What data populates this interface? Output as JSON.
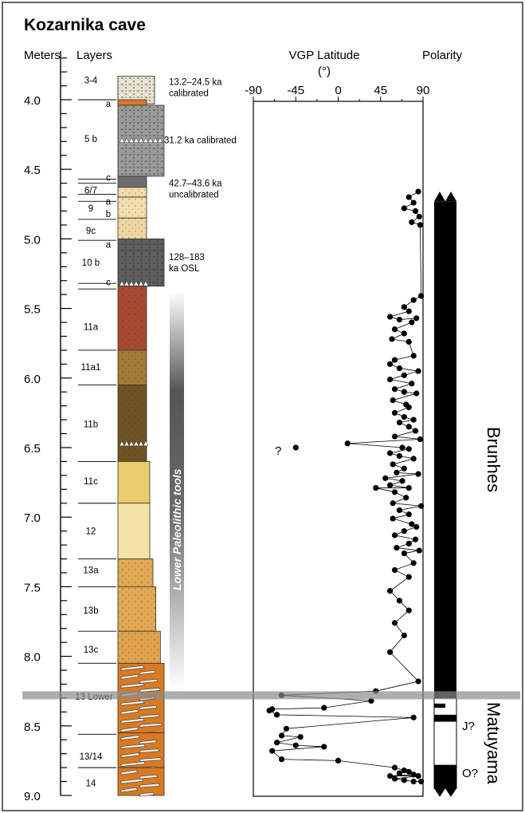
{
  "title": "Kozarnika cave",
  "headers": {
    "meters": "Meters",
    "layers": "Layers",
    "vgp_line1": "VGP Latitude",
    "vgp_line2": "(°)",
    "polarity": "Polarity"
  },
  "depth_ticks": [
    {
      "value": 4.0,
      "label": "4.0"
    },
    {
      "value": 4.5,
      "label": "4.5"
    },
    {
      "value": 5.0,
      "label": "5.0"
    },
    {
      "value": 5.5,
      "label": "5.5"
    },
    {
      "value": 6.0,
      "label": "6.0"
    },
    {
      "value": 6.5,
      "label": "6.5"
    },
    {
      "value": 7.0,
      "label": "7.0"
    },
    {
      "value": 7.5,
      "label": "7.5"
    },
    {
      "value": 8.0,
      "label": "8.0"
    },
    {
      "value": 8.5,
      "label": "8.5"
    },
    {
      "value": 9.0,
      "label": "9.0"
    }
  ],
  "vgp_ticks": [
    {
      "value": -90,
      "label": "-90"
    },
    {
      "value": -45,
      "label": "-45"
    },
    {
      "value": 0,
      "label": "0"
    },
    {
      "value": 45,
      "label": "45"
    },
    {
      "value": 90,
      "label": "90"
    }
  ],
  "layers": [
    {
      "label": "3-4",
      "sub": "a",
      "top": 3.83,
      "bottom": 4.03,
      "color": "#e8e0d0",
      "pattern": "rubble"
    },
    {
      "label": "",
      "sub": "",
      "top": 4.0,
      "bottom": 4.04,
      "color": "#d9752b",
      "pattern": "solid"
    },
    {
      "label": "5",
      "sub": "b",
      "top": 4.04,
      "bottom": 4.55,
      "color": "#9a9a96",
      "pattern": "rubble"
    },
    {
      "label": "",
      "sub": "c",
      "top": 4.55,
      "bottom": 4.63,
      "color": "#6e6e6e",
      "pattern": "solid"
    },
    {
      "label": "6/7",
      "sub": "",
      "top": 4.63,
      "bottom": 4.7,
      "color": "#f1dcaa",
      "pattern": "dots"
    },
    {
      "label": "9",
      "sub": "a b",
      "top": 4.7,
      "bottom": 4.85,
      "color": "#f3dfb0",
      "pattern": "dots"
    },
    {
      "label": "9c",
      "sub": "",
      "top": 4.85,
      "bottom": 5.0,
      "color": "#efd7a4",
      "pattern": "dots"
    },
    {
      "label": "10",
      "sub": "a b c",
      "top": 5.0,
      "bottom": 5.34,
      "color": "#5e5e5e",
      "pattern": "rubble"
    },
    {
      "label": "11a",
      "sub": "",
      "top": 5.34,
      "bottom": 5.8,
      "color": "#a84a33",
      "pattern": "dots"
    },
    {
      "label": "11a1",
      "sub": "",
      "top": 5.8,
      "bottom": 6.05,
      "color": "#a27c36",
      "pattern": "dots"
    },
    {
      "label": "11b",
      "sub": "",
      "top": 6.05,
      "bottom": 6.6,
      "color": "#6f5423",
      "pattern": "dots"
    },
    {
      "label": "11c",
      "sub": "",
      "top": 6.6,
      "bottom": 6.9,
      "color": "#ebcc6f",
      "pattern": "solid"
    },
    {
      "label": "12",
      "sub": "",
      "top": 6.9,
      "bottom": 7.3,
      "color": "#f2e2a6",
      "pattern": "solid"
    },
    {
      "label": "13a",
      "sub": "",
      "top": 7.3,
      "bottom": 7.5,
      "color": "#e2a954",
      "pattern": "dots"
    },
    {
      "label": "13b",
      "sub": "",
      "top": 7.5,
      "bottom": 7.82,
      "color": "#e1a955",
      "pattern": "dots"
    },
    {
      "label": "13c",
      "sub": "",
      "top": 7.82,
      "bottom": 8.05,
      "color": "#e0a34d",
      "pattern": "dots"
    },
    {
      "label": "13 Lower",
      "sub": "",
      "top": 8.05,
      "bottom": 8.55,
      "color": "#d97a22",
      "pattern": "slabs"
    },
    {
      "label": "13/14",
      "sub": "",
      "top": 8.55,
      "bottom": 8.8,
      "color": "#d97a22",
      "pattern": "slabs"
    },
    {
      "label": "14",
      "sub": "",
      "top": 8.8,
      "bottom": 9.0,
      "color": "#d97a22",
      "pattern": "slabs"
    }
  ],
  "layer_labels": [
    {
      "text": "3-4",
      "depth": 3.86,
      "x": "mid"
    },
    {
      "text": "a",
      "depth": 4.03,
      "x": "right"
    },
    {
      "text": "5  b",
      "depth": 4.28,
      "x": "mid"
    },
    {
      "text": "c",
      "depth": 4.56,
      "x": "right"
    },
    {
      "text": "6/7",
      "depth": 4.65,
      "x": "mid"
    },
    {
      "text": "a",
      "depth": 4.73,
      "x": "right"
    },
    {
      "text": "9",
      "depth": 4.78,
      "x": "mid"
    },
    {
      "text": "b",
      "depth": 4.82,
      "x": "right"
    },
    {
      "text": "9c",
      "depth": 4.94,
      "x": "mid"
    },
    {
      "text": "a",
      "depth": 5.04,
      "x": "right"
    },
    {
      "text": "10  b",
      "depth": 5.17,
      "x": "mid"
    },
    {
      "text": "c",
      "depth": 5.31,
      "x": "right"
    },
    {
      "text": "11a",
      "depth": 5.63,
      "x": "mid"
    },
    {
      "text": "11a1",
      "depth": 5.92,
      "x": "mid"
    },
    {
      "text": "11b",
      "depth": 6.33,
      "x": "mid"
    },
    {
      "text": "11c",
      "depth": 6.74,
      "x": "mid"
    },
    {
      "text": "12",
      "depth": 7.1,
      "x": "mid"
    },
    {
      "text": "13a",
      "depth": 7.38,
      "x": "mid"
    },
    {
      "text": "13b",
      "depth": 7.67,
      "x": "mid"
    },
    {
      "text": "13c",
      "depth": 7.95,
      "x": "mid"
    },
    {
      "text": "13 Lower",
      "depth": 8.29,
      "x": "mid"
    },
    {
      "text": "13/14",
      "depth": 8.72,
      "x": "mid"
    },
    {
      "text": "14",
      "depth": 8.91,
      "x": "mid"
    }
  ],
  "layer_boundaries": [
    4.0,
    4.57,
    4.6,
    4.68,
    4.73,
    4.86,
    5.01,
    5.32,
    5.36,
    5.8,
    6.05,
    6.6,
    6.9,
    7.3,
    7.5,
    7.82,
    8.05,
    8.56,
    8.8
  ],
  "ages": [
    {
      "line1": "13.2–24.5 ka",
      "line2": "calibrated",
      "depth": 3.87
    },
    {
      "line1": "31.2 ka calibrated",
      "line2": "",
      "depth": 4.29
    },
    {
      "line1": "42.7–43.6 ka",
      "line2": "uncalibrated",
      "depth": 4.6
    },
    {
      "line1": "128–183",
      "line2": "ka OSL",
      "depth": 5.13
    }
  ],
  "tools_label": "Lower Paleolithic tools",
  "gray_band_depth": 8.28,
  "question_mark": "?",
  "chart_data": {
    "type": "scatter",
    "title": "",
    "xlabel": "VGP Latitude (°)",
    "ylabel": "Meters",
    "xlim": [
      -90,
      90
    ],
    "ylim": [
      3.8,
      9.0
    ],
    "series": [
      {
        "name": "",
        "points": [
          [
            85,
            4.66
          ],
          [
            75,
            4.7
          ],
          [
            80,
            4.74
          ],
          [
            70,
            4.78
          ],
          [
            82,
            4.8
          ],
          [
            86,
            4.84
          ],
          [
            78,
            4.88
          ],
          [
            87,
            4.9
          ],
          [
            88,
            5.41
          ],
          [
            80,
            5.44
          ],
          [
            70,
            5.49
          ],
          [
            75,
            5.52
          ],
          [
            55,
            5.56
          ],
          [
            65,
            5.58
          ],
          [
            83,
            5.57
          ],
          [
            78,
            5.6
          ],
          [
            60,
            5.65
          ],
          [
            70,
            5.68
          ],
          [
            57,
            5.72
          ],
          [
            75,
            5.74
          ],
          [
            80,
            5.84
          ],
          [
            60,
            5.87
          ],
          [
            55,
            5.9
          ],
          [
            65,
            5.93
          ],
          [
            85,
            5.95
          ],
          [
            70,
            5.98
          ],
          [
            55,
            6.01
          ],
          [
            78,
            6.04
          ],
          [
            60,
            6.08
          ],
          [
            70,
            6.1
          ],
          [
            83,
            6.11
          ],
          [
            58,
            6.16
          ],
          [
            72,
            6.19
          ],
          [
            75,
            6.21
          ],
          [
            60,
            6.25
          ],
          [
            70,
            6.28
          ],
          [
            80,
            6.3
          ],
          [
            65,
            6.32
          ],
          [
            75,
            6.35
          ],
          [
            82,
            6.38
          ],
          [
            60,
            6.42
          ],
          [
            87,
            6.44
          ],
          [
            10,
            6.47
          ],
          [
            68,
            6.5
          ],
          [
            75,
            6.51
          ],
          [
            55,
            6.54
          ],
          [
            65,
            6.56
          ],
          [
            80,
            6.58
          ],
          [
            58,
            6.62
          ],
          [
            70,
            6.65
          ],
          [
            62,
            6.68
          ],
          [
            85,
            6.69
          ],
          [
            50,
            6.72
          ],
          [
            68,
            6.74
          ],
          [
            55,
            6.77
          ],
          [
            75,
            6.79
          ],
          [
            40,
            6.79
          ],
          [
            60,
            6.82
          ],
          [
            72,
            6.86
          ],
          [
            58,
            6.9
          ],
          [
            88,
            6.92
          ],
          [
            65,
            6.95
          ],
          [
            75,
            6.98
          ],
          [
            58,
            7.01
          ],
          [
            78,
            7.05
          ],
          [
            83,
            7.07
          ],
          [
            70,
            7.1
          ],
          [
            60,
            7.13
          ],
          [
            82,
            7.16
          ],
          [
            75,
            7.19
          ],
          [
            62,
            7.22
          ],
          [
            86,
            7.24
          ],
          [
            70,
            7.26
          ],
          [
            80,
            7.33
          ],
          [
            60,
            7.38
          ],
          [
            75,
            7.43
          ],
          [
            55,
            7.53
          ],
          [
            65,
            7.6
          ],
          [
            75,
            7.67
          ],
          [
            60,
            7.76
          ],
          [
            70,
            7.85
          ],
          [
            55,
            7.97
          ],
          [
            85,
            8.18
          ],
          [
            40,
            8.25
          ],
          [
            -60,
            8.28
          ],
          [
            35,
            8.32
          ],
          [
            -15,
            8.37
          ],
          [
            -70,
            8.38
          ],
          [
            -73,
            8.39
          ],
          [
            -65,
            8.42
          ],
          [
            80,
            8.44
          ],
          [
            -55,
            8.52
          ],
          [
            -60,
            8.57
          ],
          [
            -40,
            8.58
          ],
          [
            -65,
            8.62
          ],
          [
            -45,
            8.64
          ],
          [
            -15,
            8.65
          ],
          [
            -70,
            8.68
          ],
          [
            -60,
            8.74
          ],
          [
            0,
            8.75
          ],
          [
            60,
            8.8
          ],
          [
            70,
            8.82
          ],
          [
            65,
            8.84
          ],
          [
            75,
            8.83
          ],
          [
            80,
            8.85
          ],
          [
            55,
            8.86
          ],
          [
            85,
            8.86
          ],
          [
            60,
            8.88
          ],
          [
            70,
            8.89
          ],
          [
            80,
            8.9
          ],
          [
            88,
            8.9
          ]
        ]
      }
    ],
    "outlier": [
      -45,
      6.5
    ],
    "grid": false
  },
  "polarity": {
    "brunhes": "Brunhes",
    "matuyama": "Matuyama",
    "j_label": "J?",
    "o_label": "O?",
    "black_intervals": [
      [
        4.73,
        8.3
      ],
      [
        8.34,
        8.37
      ],
      [
        8.42,
        8.47
      ],
      [
        8.78,
        8.95
      ]
    ]
  }
}
